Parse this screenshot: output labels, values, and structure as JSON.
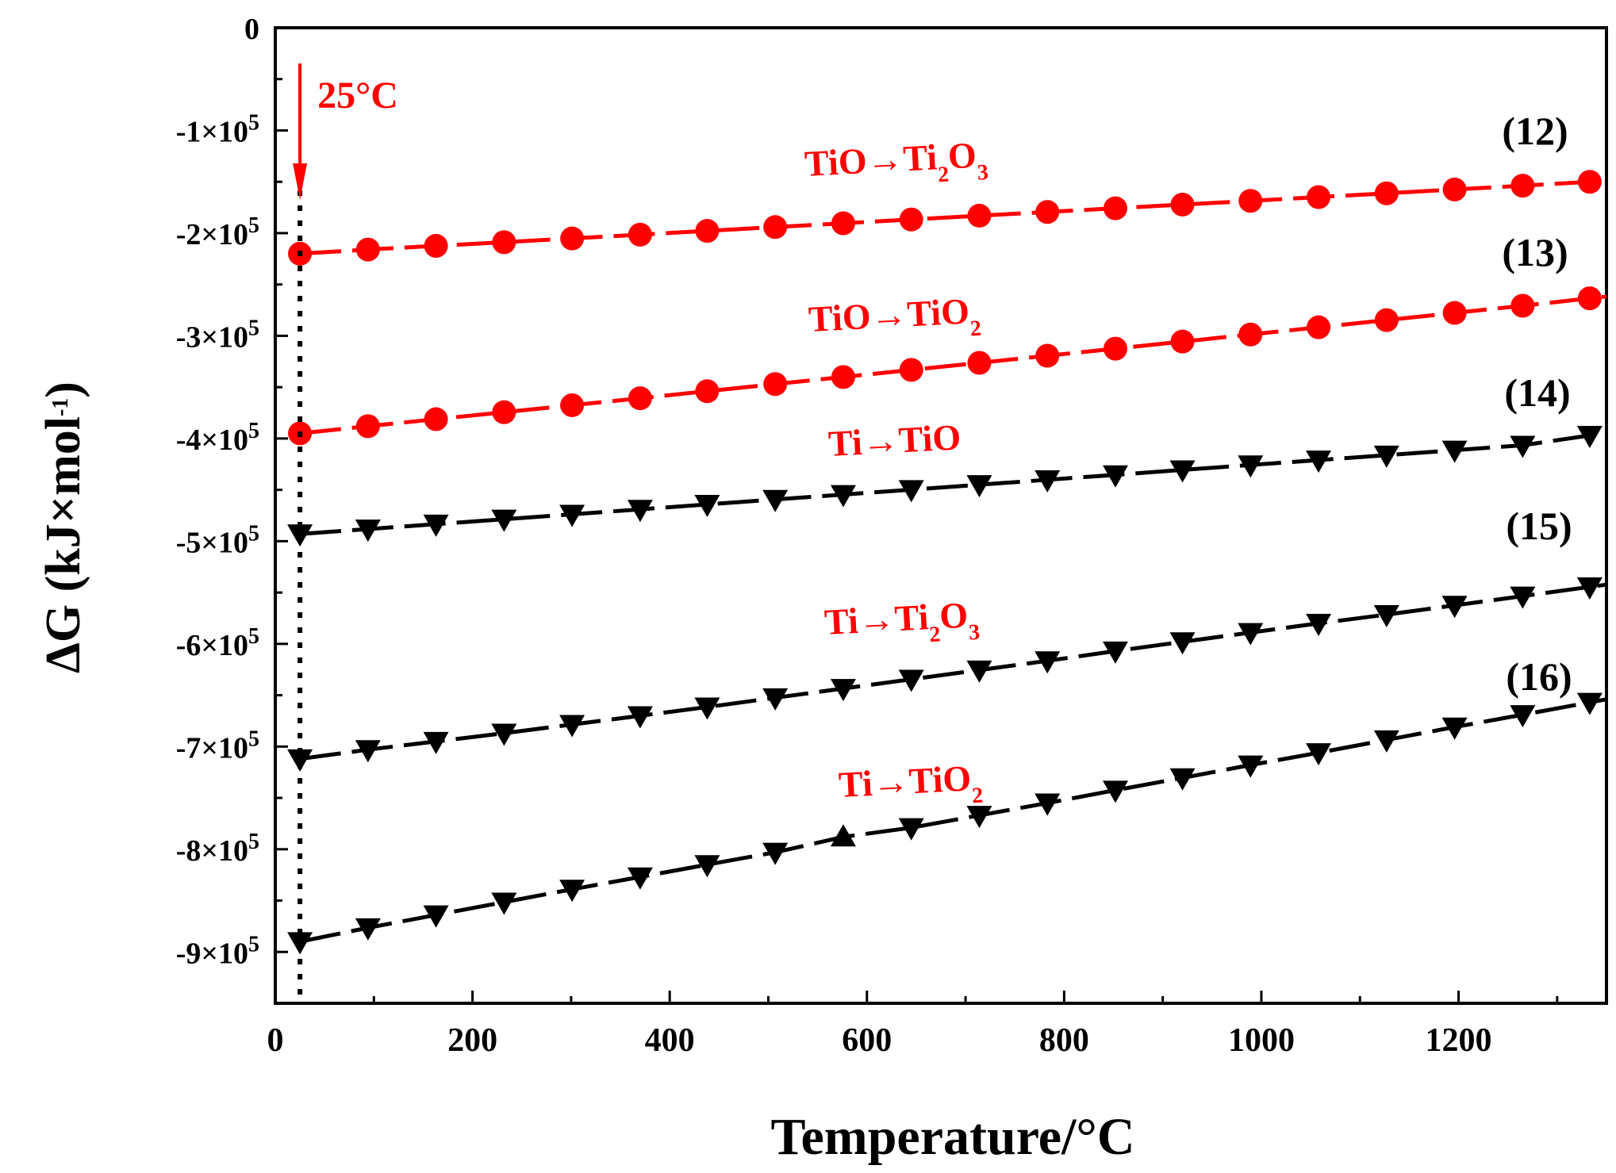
{
  "chart_data": {
    "type": "line",
    "xlabel": "Temperature/°C",
    "ylabel_main": "ΔG (kJ×mol",
    "ylabel_sup": "-1",
    "ylabel_close": ")",
    "xlim": [
      0,
      1350
    ],
    "ylim": [
      -950000,
      0
    ],
    "x_ticks": [
      0,
      200,
      400,
      600,
      800,
      1000,
      1200
    ],
    "x_tick_labels": [
      "0",
      "200",
      "400",
      "600",
      "800",
      "1000",
      "1200"
    ],
    "y_ticks": [
      0,
      -100000,
      -200000,
      -300000,
      -400000,
      -500000,
      -600000,
      -700000,
      -800000,
      -900000
    ],
    "y_tick_labels": [
      {
        "base": "0",
        "exp": ""
      },
      {
        "base": "-1×10",
        "exp": "5"
      },
      {
        "base": "-2×10",
        "exp": "5"
      },
      {
        "base": "-3×10",
        "exp": "5"
      },
      {
        "base": "-4×10",
        "exp": "5"
      },
      {
        "base": "-5×10",
        "exp": "5"
      },
      {
        "base": "-6×10",
        "exp": "5"
      },
      {
        "base": "-7×10",
        "exp": "5"
      },
      {
        "base": "-8×10",
        "exp": "5"
      },
      {
        "base": "-9×10",
        "exp": "5"
      }
    ],
    "x": [
      25,
      94,
      163,
      232,
      301,
      370,
      438,
      507,
      576,
      645,
      714,
      783,
      852,
      920,
      989,
      1058,
      1127,
      1196,
      1265,
      1333
    ],
    "series": [
      {
        "id": "s12",
        "number": "(12)",
        "reaction_parts": [
          [
            "TiO→Ti",
            ""
          ],
          [
            "2",
            "sub"
          ],
          [
            "O",
            ""
          ],
          [
            "3",
            "sub"
          ]
        ],
        "color": "#ff0000",
        "marker": "circle",
        "values": [
          -220000,
          -216000,
          -212400,
          -208800,
          -205200,
          -201500,
          -197800,
          -194100,
          -190400,
          -186700,
          -183000,
          -179400,
          -175800,
          -172200,
          -168600,
          -164900,
          -161200,
          -157500,
          -153800,
          -150000
        ]
      },
      {
        "id": "s13",
        "number": "(13)",
        "reaction_parts": [
          [
            "TiO→TiO",
            ""
          ],
          [
            "2",
            "sub"
          ]
        ],
        "color": "#ff0000",
        "marker": "circle",
        "values": [
          -395000,
          -388000,
          -381200,
          -374400,
          -367600,
          -360800,
          -353900,
          -347000,
          -340100,
          -333200,
          -326300,
          -319400,
          -312500,
          -305600,
          -298700,
          -291700,
          -284700,
          -277700,
          -270700,
          -263500
        ]
      },
      {
        "id": "s14",
        "number": "(14)",
        "reaction_parts": [
          [
            "Ti→TiO",
            ""
          ]
        ],
        "color": "#000000",
        "marker": "triangle-down",
        "values": [
          -493000,
          -488200,
          -483400,
          -478600,
          -473800,
          -469000,
          -464200,
          -459400,
          -454600,
          -449800,
          -445000,
          -440200,
          -435400,
          -430600,
          -425800,
          -421000,
          -416200,
          -411400,
          -406600,
          -397000
        ]
      },
      {
        "id": "s15",
        "number": "(15)",
        "reaction_parts": [
          [
            "Ti→Ti",
            ""
          ],
          [
            "2",
            "sub"
          ],
          [
            "O",
            ""
          ],
          [
            "3",
            "sub"
          ]
        ],
        "color": "#000000",
        "marker": "triangle-down",
        "values": [
          -712000,
          -703000,
          -695000,
          -687000,
          -678500,
          -670000,
          -661500,
          -652500,
          -643500,
          -634500,
          -625500,
          -616500,
          -607000,
          -598000,
          -589000,
          -580000,
          -571500,
          -562500,
          -553500,
          -544500
        ]
      },
      {
        "id": "s16",
        "number": "(16)",
        "reaction_parts": [
          [
            "Ti→TiO",
            ""
          ],
          [
            "2",
            "sub"
          ]
        ],
        "color": "#000000",
        "marker": "triangle-down",
        "values": [
          -890000,
          -876500,
          -864000,
          -851500,
          -839000,
          -827000,
          -815000,
          -803000,
          -788000,
          -779000,
          -767000,
          -755000,
          -742500,
          -730500,
          -718000,
          -706000,
          -693500,
          -681000,
          -669000,
          -657000
        ],
        "marker_override": {
          "index": 8,
          "marker": "triangle-up"
        }
      }
    ],
    "annotation": {
      "text": "25°C",
      "color": "#ff0000",
      "x": 25
    }
  }
}
